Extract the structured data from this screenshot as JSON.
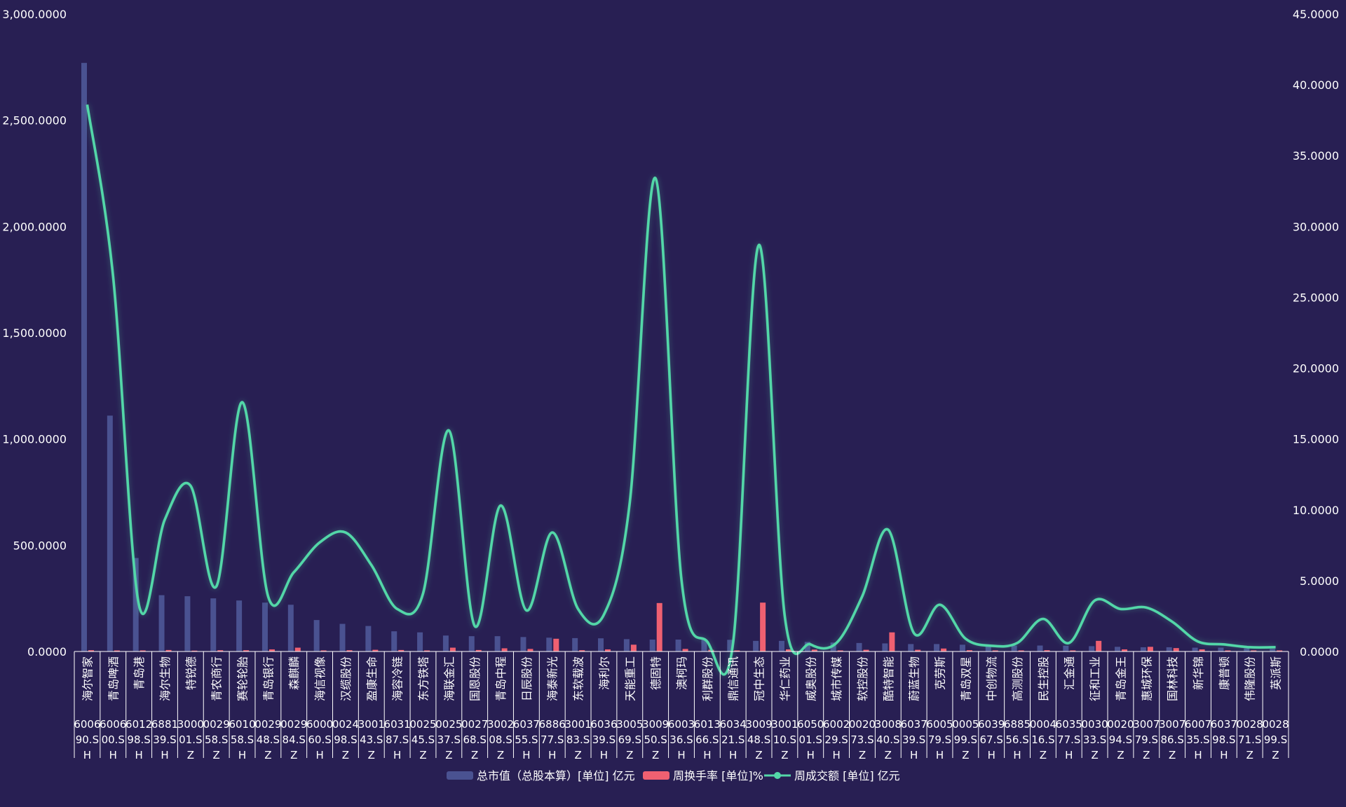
{
  "chart_data": {
    "type": "bar",
    "title": "",
    "colors": {
      "background": "#281f53",
      "bar_market_cap": "#4a5291",
      "bar_turnover": "#ef6071",
      "line_volume": "#53d7a8",
      "axis_text": "#ffffff",
      "axis_line": "#ffffff"
    },
    "legend_position": "bottom-center",
    "grid": false,
    "y_left": {
      "ticks": [
        "0.0000",
        "500.0000",
        "1,000.0000",
        "1,500.0000",
        "2,000.0000",
        "2,500.0000",
        "3,000.0000"
      ],
      "range": [
        0,
        3000
      ]
    },
    "y_right": {
      "ticks": [
        "0.0000",
        "5.0000",
        "10.0000",
        "15.0000",
        "20.0000",
        "25.0000",
        "30.0000",
        "35.0000",
        "40.0000",
        "45.0000"
      ],
      "range": [
        0,
        45
      ]
    },
    "categories": [
      {
        "name": "海尔智家",
        "code": "600690.SH"
      },
      {
        "name": "青岛啤酒",
        "code": "600600.SH"
      },
      {
        "name": "青岛港",
        "code": "601298.SH"
      },
      {
        "name": "海尔生物",
        "code": "688139.SH"
      },
      {
        "name": "特锐德",
        "code": "300001.SZ"
      },
      {
        "name": "青农商行",
        "code": "002958.SZ"
      },
      {
        "name": "赛轮轮胎",
        "code": "601058.SH"
      },
      {
        "name": "青岛银行",
        "code": "002948.SZ"
      },
      {
        "name": "森麒麟",
        "code": "002984.SZ"
      },
      {
        "name": "海信视像",
        "code": "600060.SH"
      },
      {
        "name": "汉缆股份",
        "code": "002498.SZ"
      },
      {
        "name": "盈康生命",
        "code": "300143.SZ"
      },
      {
        "name": "海容冷链",
        "code": "603187.SH"
      },
      {
        "name": "东方铁塔",
        "code": "002545.SZ"
      },
      {
        "name": "海联金汇",
        "code": "002537.SZ"
      },
      {
        "name": "国恩股份",
        "code": "002768.SZ"
      },
      {
        "name": "青岛中程",
        "code": "300208.SZ"
      },
      {
        "name": "日辰股份",
        "code": "603755.SH"
      },
      {
        "name": "海泰新光",
        "code": "688677.SH"
      },
      {
        "name": "东软载波",
        "code": "300183.SZ"
      },
      {
        "name": "海利尔",
        "code": "603639.SH"
      },
      {
        "name": "天能重工",
        "code": "300569.SZ"
      },
      {
        "name": "德固特",
        "code": "300950.SZ"
      },
      {
        "name": "澳柯玛",
        "code": "600336.SH"
      },
      {
        "name": "利群股份",
        "code": "601366.SH"
      },
      {
        "name": "鼎信通讯",
        "code": "603421.SH"
      },
      {
        "name": "冠中生态",
        "code": "300948.SZ"
      },
      {
        "name": "华仁药业",
        "code": "300110.SZ"
      },
      {
        "name": "威奥股份",
        "code": "605001.SH"
      },
      {
        "name": "城市传媒",
        "code": "600229.SH"
      },
      {
        "name": "软控股份",
        "code": "002073.SZ"
      },
      {
        "name": "酷特智能",
        "code": "300840.SZ"
      },
      {
        "name": "蔚蓝生物",
        "code": "603739.SH"
      },
      {
        "name": "克劳斯",
        "code": "600579.SH"
      },
      {
        "name": "青岛双星",
        "code": "000599.SZ"
      },
      {
        "name": "中创物流",
        "code": "603967.SH"
      },
      {
        "name": "高测股份",
        "code": "688556.SH"
      },
      {
        "name": "民生控股",
        "code": "000416.SZ"
      },
      {
        "name": "汇金通",
        "code": "603577.SH"
      },
      {
        "name": "征和工业",
        "code": "003033.SZ"
      },
      {
        "name": "青岛金王",
        "code": "002094.SZ"
      },
      {
        "name": "惠城环保",
        "code": "300779.SZ"
      },
      {
        "name": "国林科技",
        "code": "300786.SZ"
      },
      {
        "name": "新华锦",
        "code": "600735.SH"
      },
      {
        "name": "康普顿",
        "code": "603798.SH"
      },
      {
        "name": "伟隆股份",
        "code": "002871.SZ"
      },
      {
        "name": "英派斯",
        "code": "002899.SZ"
      }
    ],
    "series": [
      {
        "name": "总市值（总股本算）[单位] 亿元",
        "type": "bar",
        "axis": "left",
        "values": [
          2770,
          1110,
          440,
          265,
          260,
          250,
          240,
          230,
          220,
          148,
          130,
          120,
          95,
          90,
          75,
          72,
          72,
          68,
          65,
          63,
          62,
          58,
          56,
          56,
          55,
          55,
          50,
          50,
          45,
          42,
          40,
          38,
          35,
          35,
          32,
          30,
          28,
          28,
          27,
          25,
          22,
          20,
          20,
          18,
          18,
          15,
          12
        ]
      },
      {
        "name": "周换手率 [单位]%",
        "type": "bar",
        "axis": "left",
        "values": [
          6,
          5,
          5,
          7,
          4,
          6,
          6,
          10,
          18,
          5,
          6,
          8,
          7,
          5,
          18,
          7,
          15,
          12,
          60,
          6,
          10,
          32,
          228,
          12,
          8,
          5,
          230,
          10,
          9,
          5,
          8,
          90,
          8,
          14,
          6,
          5,
          5,
          6,
          5,
          50,
          10,
          22,
          16,
          10,
          5,
          5,
          5
        ]
      },
      {
        "name": "周成交额 [单位] 亿元",
        "type": "line",
        "axis": "right",
        "values": [
          38.6,
          26.5,
          3.3,
          9.3,
          11.7,
          4.6,
          17.6,
          3.9,
          5.6,
          7.7,
          8.4,
          6.1,
          3.0,
          4.1,
          15.6,
          1.8,
          10.3,
          2.9,
          8.4,
          3.0,
          2.6,
          10.5,
          33.4,
          5.1,
          0.7,
          0.6,
          28.7,
          2.5,
          0.5,
          0.6,
          3.9,
          8.6,
          1.3,
          3.3,
          0.9,
          0.4,
          0.6,
          2.3,
          0.6,
          3.6,
          3.0,
          3.1,
          2.1,
          0.7,
          0.5,
          0.3,
          0.3
        ]
      }
    ]
  }
}
